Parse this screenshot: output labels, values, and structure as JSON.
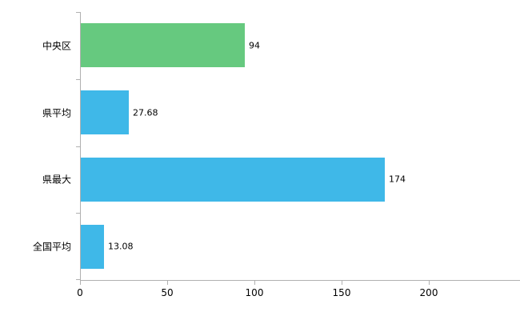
{
  "chart_data": {
    "type": "bar",
    "orientation": "horizontal",
    "title": "",
    "xlabel": "",
    "ylabel": "",
    "categories": [
      "中央区",
      "県平均",
      "県最大",
      "全国平均"
    ],
    "values": [
      94,
      27.68,
      174,
      13.08
    ],
    "value_labels": [
      "94",
      "27.68",
      "174",
      "13.08"
    ],
    "bar_colors": [
      "#66c97f",
      "#3fb8e8",
      "#3fb8e8",
      "#3fb8e8"
    ],
    "x_ticks": [
      0,
      50,
      100,
      150,
      200
    ],
    "xlim": [
      0,
      253
    ],
    "grid": false,
    "legend": "none",
    "axis_color": "#b0b0b0",
    "label_color": "#000000"
  }
}
